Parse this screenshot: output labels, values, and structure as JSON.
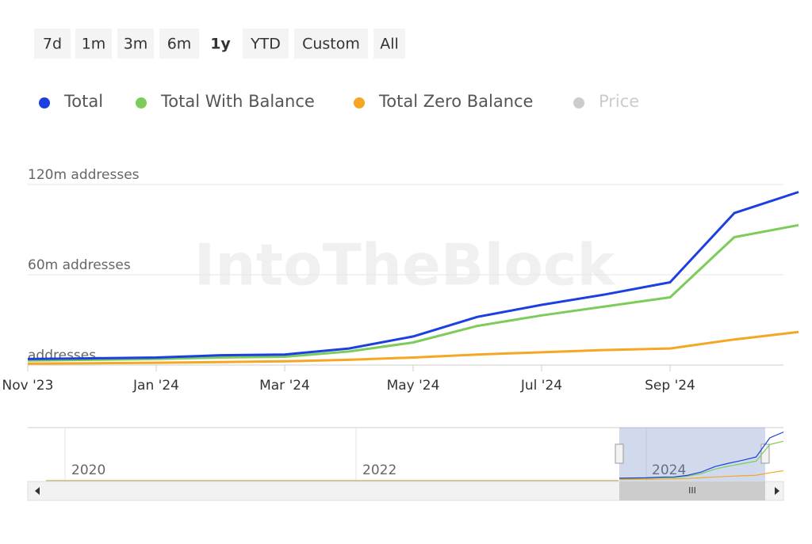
{
  "range_buttons": [
    "7d",
    "1m",
    "3m",
    "6m",
    "1y",
    "YTD",
    "Custom",
    "All"
  ],
  "selected_range": "1y",
  "watermark": "IntoTheBlock",
  "navigator": {
    "labels": [
      "2020",
      "2022",
      "2024"
    ]
  },
  "chart_data": {
    "type": "line",
    "x": [
      "2023-11",
      "2023-12",
      "2024-01",
      "2024-02",
      "2024-03",
      "2024-04",
      "2024-05",
      "2024-06",
      "2024-07",
      "2024-08",
      "2024-09",
      "2024-10",
      "2024-11"
    ],
    "series": [
      {
        "name": "Total",
        "color": "#1c3fe0",
        "values": [
          4,
          4.5,
          5,
          6.5,
          7,
          11,
          19,
          32,
          40,
          47,
          55,
          101,
          115
        ]
      },
      {
        "name": "Total With Balance",
        "color": "#7ccc5a",
        "values": [
          3,
          3.5,
          4,
          5,
          5.5,
          9,
          15,
          26,
          33,
          39,
          45,
          85,
          93
        ]
      },
      {
        "name": "Total Zero Balance",
        "color": "#f5a623",
        "values": [
          1,
          1.2,
          1.5,
          2,
          2.5,
          3.5,
          5,
          7,
          8.5,
          10,
          11,
          17,
          22
        ]
      },
      {
        "name": "Price",
        "color": "#cccccc",
        "visible": false,
        "values": [
          null,
          null,
          null,
          null,
          null,
          null,
          null,
          null,
          null,
          null,
          null,
          null,
          null
        ]
      }
    ],
    "xlim": [
      "2023-11",
      "2024-11"
    ],
    "xticks": [
      {
        "value": "2023-11",
        "label": "Nov '23"
      },
      {
        "value": "2024-01",
        "label": "Jan '24"
      },
      {
        "value": "2024-03",
        "label": "Mar '24"
      },
      {
        "value": "2024-05",
        "label": "May '24"
      },
      {
        "value": "2024-07",
        "label": "Jul '24"
      },
      {
        "value": "2024-09",
        "label": "Sep '24"
      }
    ],
    "ylim": [
      0,
      120
    ],
    "yticks": [
      {
        "value": 0,
        "label": "addresses"
      },
      {
        "value": 60,
        "label": "60m addresses"
      },
      {
        "value": 120,
        "label": "120m addresses"
      }
    ],
    "grid": true
  }
}
